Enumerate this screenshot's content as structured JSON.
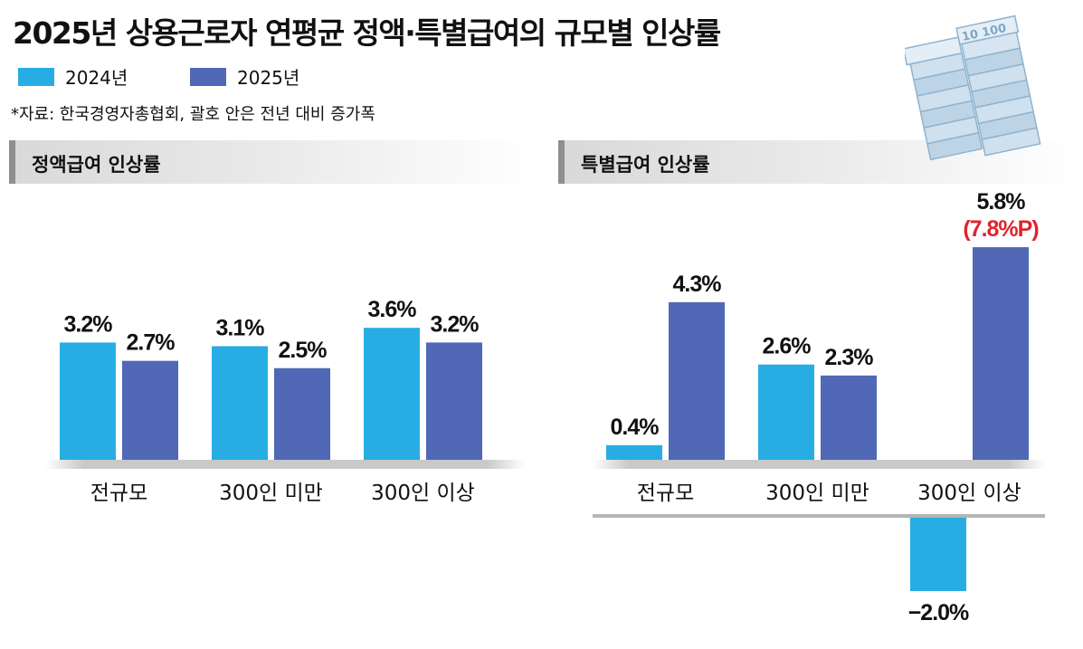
{
  "title": "2025년 상용근로자 연평균 정액·특별급여의 규모별 인상률",
  "legend": [
    {
      "label": "2024년",
      "color": "#27ade3"
    },
    {
      "label": "2025년",
      "color": "#5068b6"
    }
  ],
  "source": "*자료: 한국경영자총협회, 괄호 안은 전년 대비 증가폭",
  "illustration": {
    "icon": "money-stack-icon",
    "text": "10 100"
  },
  "chart_data": [
    {
      "type": "bar",
      "title": "정액급여 인상률",
      "categories": [
        "전규모",
        "300인 미만",
        "300인 이상"
      ],
      "series": [
        {
          "name": "2024년",
          "values": [
            3.2,
            3.1,
            3.6
          ],
          "labels": [
            "3.2%",
            "3.1%",
            "3.6%"
          ]
        },
        {
          "name": "2025년",
          "values": [
            2.7,
            2.5,
            3.2
          ],
          "labels": [
            "2.7%",
            "2.5%",
            "3.2%"
          ]
        }
      ],
      "unit": "%"
    },
    {
      "type": "bar",
      "title": "특별급여 인상률",
      "categories": [
        "전규모",
        "300인 미만",
        "300인 이상"
      ],
      "series": [
        {
          "name": "2024년",
          "values": [
            0.4,
            2.6,
            -2.0
          ],
          "labels": [
            "0.4%",
            "2.6%",
            "−2.0%"
          ]
        },
        {
          "name": "2025년",
          "values": [
            4.3,
            2.3,
            5.8
          ],
          "labels": [
            "4.3%",
            "2.3%",
            "5.8%"
          ]
        }
      ],
      "annotations": [
        {
          "category": "300인 이상",
          "series": "2025년",
          "text": "(7.8%P)",
          "color": "#e0242d"
        }
      ],
      "unit": "%"
    }
  ]
}
